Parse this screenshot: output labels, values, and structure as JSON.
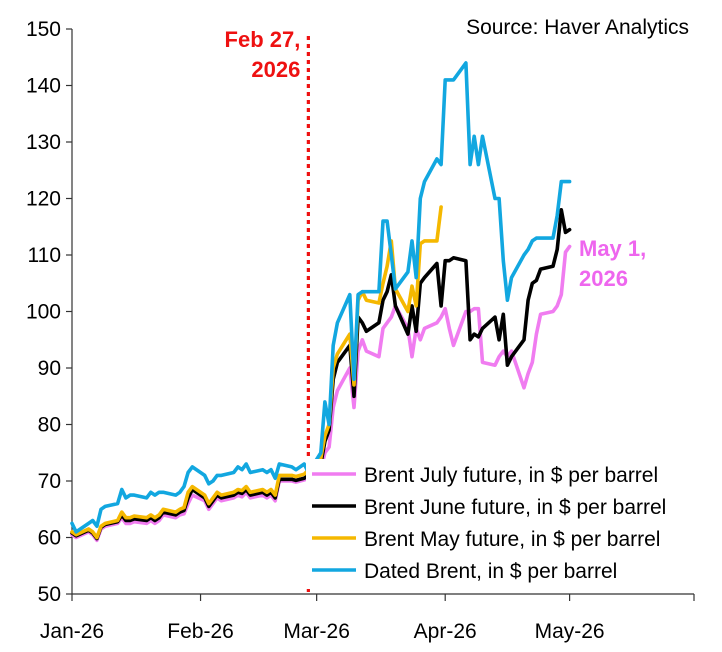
{
  "chart_data": {
    "type": "line",
    "title": "",
    "xlabel": "",
    "ylabel": "",
    "source": "Source: Haver Analytics",
    "ylim": [
      50,
      150
    ],
    "yticks": [
      50,
      60,
      70,
      80,
      90,
      100,
      110,
      120,
      130,
      140,
      150
    ],
    "xlim": [
      "2026-01-01",
      "2026-05-31"
    ],
    "xticks": [
      {
        "date": "2026-01-01",
        "label": "Jan-26"
      },
      {
        "date": "2026-02-01",
        "label": "Feb-26"
      },
      {
        "date": "2026-03-01",
        "label": "Mar-26"
      },
      {
        "date": "2026-04-01",
        "label": "Apr-26"
      },
      {
        "date": "2026-05-01",
        "label": "May-26"
      }
    ],
    "grid": false,
    "legend_position": "bottom-right",
    "annotations": [
      {
        "lines": [
          "Feb 27,",
          "2026"
        ],
        "date": "2026-02-27",
        "color": "#ee1111",
        "vline": true
      },
      {
        "lines": [
          "May 1,",
          "2026"
        ],
        "date": "2026-05-01",
        "color": "#ee66ee",
        "vline": false
      }
    ],
    "series": [
      {
        "name": "Brent July future, in $ per barrel",
        "color": "#f07cf0",
        "x": [
          "2026-01-01",
          "2026-01-02",
          "2026-01-05",
          "2026-01-06",
          "2026-01-07",
          "2026-01-08",
          "2026-01-09",
          "2026-01-12",
          "2026-01-13",
          "2026-01-14",
          "2026-01-15",
          "2026-01-16",
          "2026-01-19",
          "2026-01-20",
          "2026-01-21",
          "2026-01-22",
          "2026-01-23",
          "2026-01-26",
          "2026-01-27",
          "2026-01-28",
          "2026-01-29",
          "2026-01-30",
          "2026-02-02",
          "2026-02-03",
          "2026-02-04",
          "2026-02-05",
          "2026-02-06",
          "2026-02-09",
          "2026-02-10",
          "2026-02-11",
          "2026-02-12",
          "2026-02-13",
          "2026-02-16",
          "2026-02-17",
          "2026-02-18",
          "2026-02-19",
          "2026-02-20",
          "2026-02-23",
          "2026-02-24",
          "2026-02-25",
          "2026-02-26",
          "2026-02-27",
          "2026-03-02",
          "2026-03-03",
          "2026-03-04",
          "2026-03-05",
          "2026-03-06",
          "2026-03-09",
          "2026-03-10",
          "2026-03-11",
          "2026-03-12",
          "2026-03-13",
          "2026-03-16",
          "2026-03-17",
          "2026-03-18",
          "2026-03-19",
          "2026-03-20",
          "2026-03-23",
          "2026-03-24",
          "2026-03-25",
          "2026-03-26",
          "2026-03-27",
          "2026-03-30",
          "2026-03-31",
          "2026-04-01",
          "2026-04-02",
          "2026-04-03",
          "2026-04-06",
          "2026-04-07",
          "2026-04-08",
          "2026-04-09",
          "2026-04-10",
          "2026-04-13",
          "2026-04-14",
          "2026-04-15",
          "2026-04-16",
          "2026-04-17",
          "2026-04-20",
          "2026-04-21",
          "2026-04-22",
          "2026-04-23",
          "2026-04-24",
          "2026-04-27",
          "2026-04-28",
          "2026-04-29",
          "2026-04-30",
          "2026-05-01"
        ],
        "y": [
          60.5,
          60.0,
          61.0,
          60.5,
          59.5,
          61.5,
          62.0,
          62.5,
          63.5,
          62.5,
          62.5,
          62.8,
          62.5,
          63.0,
          62.5,
          63.0,
          64.0,
          63.5,
          64.0,
          64.2,
          66.0,
          67.5,
          66.5,
          65.0,
          66.0,
          67.0,
          66.5,
          67.0,
          67.5,
          67.2,
          68.0,
          67.0,
          67.5,
          67.0,
          67.5,
          66.5,
          70.0,
          70.0,
          69.8,
          70.0,
          70.2,
          70.5,
          72.0,
          75.0,
          76.0,
          83.0,
          86.0,
          90.0,
          83.0,
          93.0,
          95.0,
          93.0,
          92.0,
          97.0,
          98.0,
          99.0,
          101.0,
          97.0,
          92.0,
          97.0,
          95.0,
          97.0,
          98.0,
          99.0,
          100.5,
          97.0,
          94.0,
          100.0,
          100.0,
          100.5,
          100.5,
          91.0,
          90.5,
          92.0,
          93.0,
          92.0,
          93.0,
          86.5,
          89.0,
          91.0,
          96.0,
          99.5,
          100.0,
          101.0,
          103.0,
          110.5,
          111.5
        ]
      },
      {
        "name": "Brent June future, in $ per barrel",
        "color": "#000000",
        "x": [
          "2026-01-01",
          "2026-01-02",
          "2026-01-05",
          "2026-01-06",
          "2026-01-07",
          "2026-01-08",
          "2026-01-09",
          "2026-01-12",
          "2026-01-13",
          "2026-01-14",
          "2026-01-15",
          "2026-01-16",
          "2026-01-19",
          "2026-01-20",
          "2026-01-21",
          "2026-01-22",
          "2026-01-23",
          "2026-01-26",
          "2026-01-27",
          "2026-01-28",
          "2026-01-29",
          "2026-01-30",
          "2026-02-02",
          "2026-02-03",
          "2026-02-04",
          "2026-02-05",
          "2026-02-06",
          "2026-02-09",
          "2026-02-10",
          "2026-02-11",
          "2026-02-12",
          "2026-02-13",
          "2026-02-16",
          "2026-02-17",
          "2026-02-18",
          "2026-02-19",
          "2026-02-20",
          "2026-02-23",
          "2026-02-24",
          "2026-02-25",
          "2026-02-26",
          "2026-02-27",
          "2026-03-02",
          "2026-03-03",
          "2026-03-04",
          "2026-03-05",
          "2026-03-06",
          "2026-03-09",
          "2026-03-10",
          "2026-03-11",
          "2026-03-12",
          "2026-03-13",
          "2026-03-16",
          "2026-03-17",
          "2026-03-18",
          "2026-03-19",
          "2026-03-20",
          "2026-03-23",
          "2026-03-24",
          "2026-03-25",
          "2026-03-26",
          "2026-03-27",
          "2026-03-30",
          "2026-03-31",
          "2026-04-01",
          "2026-04-02",
          "2026-04-03",
          "2026-04-06",
          "2026-04-07",
          "2026-04-08",
          "2026-04-09",
          "2026-04-10",
          "2026-04-13",
          "2026-04-14",
          "2026-04-15",
          "2026-04-16",
          "2026-04-17",
          "2026-04-20",
          "2026-04-21",
          "2026-04-22",
          "2026-04-23",
          "2026-04-24",
          "2026-04-27",
          "2026-04-28",
          "2026-04-29",
          "2026-04-30",
          "2026-05-01"
        ],
        "y": [
          60.8,
          60.3,
          61.3,
          60.8,
          59.8,
          61.8,
          62.3,
          62.8,
          64.0,
          63.0,
          63.0,
          63.3,
          63.0,
          63.5,
          63.0,
          63.5,
          64.5,
          64.0,
          64.5,
          64.8,
          67.0,
          68.5,
          67.0,
          65.5,
          66.5,
          67.5,
          67.0,
          67.5,
          68.0,
          67.8,
          68.5,
          67.5,
          68.0,
          67.5,
          68.0,
          67.0,
          70.3,
          70.3,
          70.1,
          70.3,
          70.5,
          71.0,
          73.0,
          77.0,
          79.0,
          88.0,
          91.0,
          94.0,
          85.0,
          99.0,
          98.0,
          96.5,
          98.0,
          102.0,
          103.5,
          106.5,
          101.0,
          96.0,
          101.0,
          96.5,
          105.0,
          106.0,
          108.5,
          101.0,
          109.0,
          109.0,
          109.5,
          109.0,
          95.0,
          96.0,
          95.5,
          97.0,
          99.0,
          95.0,
          99.5,
          90.5,
          92.0,
          95.0,
          102.0,
          105.0,
          105.5,
          107.5,
          108.0,
          111.0,
          118.0,
          114.0,
          114.5
        ]
      },
      {
        "name": "Brent May future, in $ per barrel",
        "color": "#f5b800",
        "x": [
          "2026-01-01",
          "2026-01-02",
          "2026-01-05",
          "2026-01-06",
          "2026-01-07",
          "2026-01-08",
          "2026-01-09",
          "2026-01-12",
          "2026-01-13",
          "2026-01-14",
          "2026-01-15",
          "2026-01-16",
          "2026-01-19",
          "2026-01-20",
          "2026-01-21",
          "2026-01-22",
          "2026-01-23",
          "2026-01-26",
          "2026-01-27",
          "2026-01-28",
          "2026-01-29",
          "2026-01-30",
          "2026-02-02",
          "2026-02-03",
          "2026-02-04",
          "2026-02-05",
          "2026-02-06",
          "2026-02-09",
          "2026-02-10",
          "2026-02-11",
          "2026-02-12",
          "2026-02-13",
          "2026-02-16",
          "2026-02-17",
          "2026-02-18",
          "2026-02-19",
          "2026-02-20",
          "2026-02-23",
          "2026-02-24",
          "2026-02-25",
          "2026-02-26",
          "2026-02-27",
          "2026-03-02",
          "2026-03-03",
          "2026-03-04",
          "2026-03-05",
          "2026-03-06",
          "2026-03-09",
          "2026-03-10",
          "2026-03-11",
          "2026-03-12",
          "2026-03-13",
          "2026-03-16",
          "2026-03-17",
          "2026-03-18",
          "2026-03-19",
          "2026-03-20",
          "2026-03-23",
          "2026-03-24",
          "2026-03-25",
          "2026-03-26",
          "2026-03-27",
          "2026-03-30",
          "2026-03-31"
        ],
        "y": [
          61.0,
          60.5,
          61.5,
          61.0,
          60.0,
          62.0,
          62.5,
          63.0,
          64.5,
          63.5,
          63.5,
          63.8,
          63.5,
          64.0,
          63.5,
          64.0,
          65.0,
          64.5,
          65.0,
          65.3,
          68.0,
          69.0,
          67.5,
          66.0,
          67.0,
          68.0,
          67.5,
          68.0,
          68.5,
          68.3,
          69.0,
          68.0,
          68.5,
          68.0,
          68.5,
          67.5,
          71.0,
          71.0,
          70.8,
          71.0,
          71.2,
          72.0,
          74.0,
          78.0,
          80.0,
          90.0,
          92.5,
          96.0,
          87.0,
          102.0,
          103.5,
          102.0,
          101.5,
          105.0,
          108.0,
          112.5,
          104.0,
          100.0,
          104.5,
          101.0,
          112.0,
          112.5,
          112.5,
          118.5
        ]
      },
      {
        "name": "Dated Brent, in $ per barrel",
        "color": "#12a7e0",
        "x": [
          "2026-01-01",
          "2026-01-02",
          "2026-01-05",
          "2026-01-06",
          "2026-01-07",
          "2026-01-08",
          "2026-01-09",
          "2026-01-12",
          "2026-01-13",
          "2026-01-14",
          "2026-01-15",
          "2026-01-16",
          "2026-01-19",
          "2026-01-20",
          "2026-01-21",
          "2026-01-22",
          "2026-01-23",
          "2026-01-26",
          "2026-01-27",
          "2026-01-28",
          "2026-01-29",
          "2026-01-30",
          "2026-02-02",
          "2026-02-03",
          "2026-02-04",
          "2026-02-05",
          "2026-02-06",
          "2026-02-09",
          "2026-02-10",
          "2026-02-11",
          "2026-02-12",
          "2026-02-13",
          "2026-02-16",
          "2026-02-17",
          "2026-02-18",
          "2026-02-19",
          "2026-02-20",
          "2026-02-23",
          "2026-02-24",
          "2026-02-25",
          "2026-02-26",
          "2026-02-27",
          "2026-03-02",
          "2026-03-03",
          "2026-03-04",
          "2026-03-05",
          "2026-03-06",
          "2026-03-09",
          "2026-03-10",
          "2026-03-11",
          "2026-03-12",
          "2026-03-13",
          "2026-03-16",
          "2026-03-17",
          "2026-03-18",
          "2026-03-19",
          "2026-03-20",
          "2026-03-23",
          "2026-03-24",
          "2026-03-25",
          "2026-03-26",
          "2026-03-27",
          "2026-03-30",
          "2026-03-31",
          "2026-04-01",
          "2026-04-02",
          "2026-04-03",
          "2026-04-06",
          "2026-04-07",
          "2026-04-08",
          "2026-04-09",
          "2026-04-10",
          "2026-04-13",
          "2026-04-14",
          "2026-04-15",
          "2026-04-16",
          "2026-04-17",
          "2026-04-20",
          "2026-04-21",
          "2026-04-22",
          "2026-04-23",
          "2026-04-24",
          "2026-04-27",
          "2026-04-28",
          "2026-04-29",
          "2026-04-30",
          "2026-05-01"
        ],
        "y": [
          62.5,
          61.0,
          62.5,
          63.0,
          62.0,
          65.0,
          65.5,
          66.0,
          68.5,
          67.0,
          67.5,
          67.5,
          67.0,
          68.0,
          67.5,
          68.0,
          68.0,
          67.5,
          68.0,
          69.0,
          71.5,
          72.5,
          71.0,
          69.5,
          70.0,
          71.0,
          71.0,
          71.5,
          72.5,
          72.0,
          73.0,
          71.5,
          72.0,
          71.5,
          72.0,
          70.5,
          73.0,
          72.5,
          72.0,
          72.5,
          73.0,
          71.5,
          75.0,
          84.0,
          80.0,
          94.0,
          98.0,
          103.0,
          88.0,
          103.0,
          103.5,
          103.5,
          103.5,
          116.0,
          116.0,
          110.0,
          104.0,
          107.0,
          112.5,
          106.0,
          120.0,
          123.0,
          127.0,
          126.0,
          141.0,
          141.0,
          141.0,
          144.0,
          126.0,
          131.0,
          126.0,
          131.0,
          120.0,
          120.0,
          109.0,
          102.0,
          106.0,
          110.0,
          111.0,
          112.5,
          113.0,
          113.0,
          113.0,
          117.0,
          123.0,
          123.0,
          123.0
        ]
      }
    ]
  }
}
